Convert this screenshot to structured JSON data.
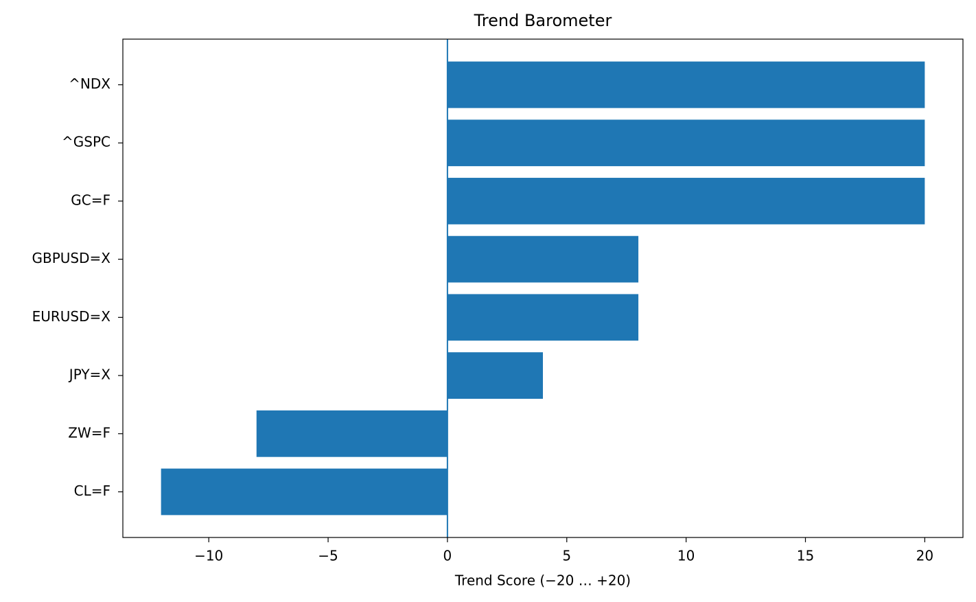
{
  "chart_data": {
    "type": "barh",
    "title": "Trend Barometer",
    "x_label": "Trend Score (−20 … +20)",
    "categories": [
      "^NDX",
      "^GSPC",
      "GC=F",
      "GBPUSD=X",
      "EURUSD=X",
      "JPY=X",
      "ZW=F",
      "CL=F"
    ],
    "values": [
      20,
      20,
      20,
      8,
      8,
      4,
      -8,
      -12
    ],
    "color": "#1f77b4",
    "xlim": [
      -13.6,
      21.6
    ],
    "xticks": [
      {
        "value": -10,
        "label": "−10"
      },
      {
        "value": -5,
        "label": "−5"
      },
      0,
      5,
      10,
      15,
      20
    ],
    "vline": 0,
    "grid": false
  }
}
